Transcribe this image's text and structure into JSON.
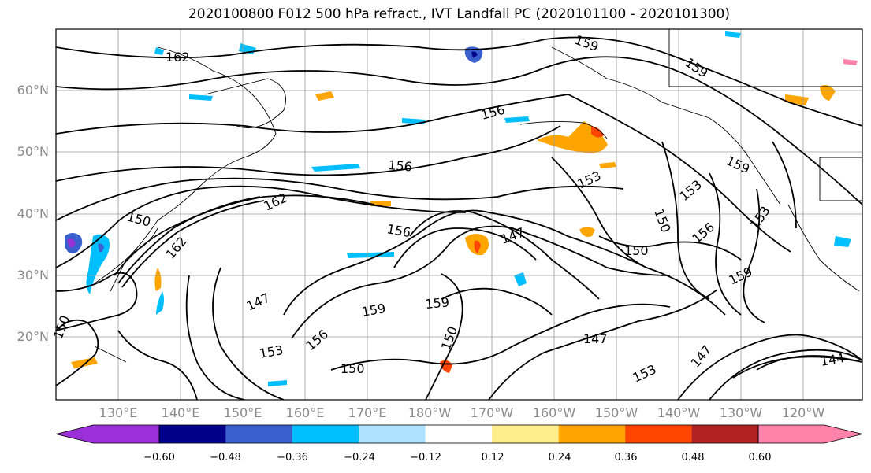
{
  "title": "2020100800 F012 500 hPa refract., IVT Landfall PC (2020101100 - 2020101300)",
  "lat_labels": [
    "60°N",
    "50°N",
    "40°N",
    "30°N",
    "20°N"
  ],
  "lon_labels": [
    "130°E",
    "140°E",
    "150°E",
    "160°E",
    "170°E",
    "180°W",
    "170°W",
    "160°W",
    "150°W",
    "140°W",
    "130°W",
    "120°W"
  ],
  "colorbar": {
    "ticks": [
      "−0.60",
      "−0.48",
      "−0.36",
      "−0.24",
      "−0.12",
      "0.12",
      "0.24",
      "0.36",
      "0.48",
      "0.60"
    ],
    "colors": [
      "#9b30d9",
      "#00008b",
      "#3a5fcd",
      "#00bfff",
      "#b0e2ff",
      "#ffffff",
      "#ffec8b",
      "#ffa500",
      "#ff4500",
      "#b22222",
      "#ff82ab"
    ]
  },
  "contour_labels": [
    "162",
    "159",
    "156",
    "153",
    "150",
    "147",
    "144",
    "159",
    "156",
    "153",
    "150",
    "147",
    "162",
    "159",
    "156",
    "153",
    "150",
    "159",
    "156",
    "150",
    "147",
    "153",
    "159",
    "150",
    "162",
    "159",
    "153",
    "150",
    "156",
    "147"
  ]
}
